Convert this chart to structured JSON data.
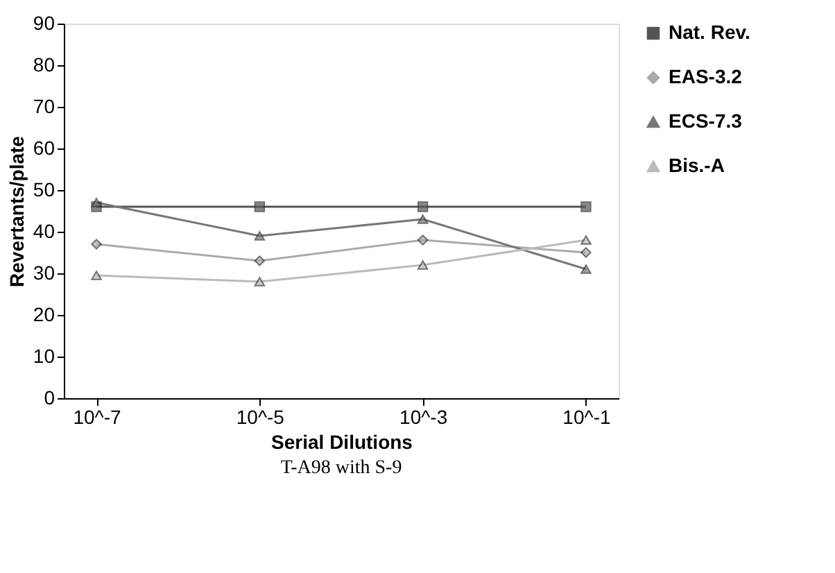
{
  "chart_data": {
    "type": "line",
    "xlabel": "Serial Dilutions",
    "ylabel": "Revertants/plate",
    "annotations": [
      "T-A98 with S-9"
    ],
    "categories": [
      "10^-7",
      "10^-5",
      "10^-3",
      "10^-1"
    ],
    "series": [
      {
        "name": "Nat. Rev.",
        "color": "#555555",
        "marker": "square",
        "values": [
          46,
          46,
          46,
          46
        ]
      },
      {
        "name": "EAS-3.2",
        "color": "#aaaaaa",
        "marker": "diamond",
        "values": [
          37,
          33,
          38,
          35
        ]
      },
      {
        "name": "ECS-7.3",
        "color": "#777777",
        "marker": "triangle",
        "values": [
          47,
          39,
          43,
          31
        ]
      },
      {
        "name": "Bis.-A",
        "color": "#bbbbbb",
        "marker": "triangle",
        "values": [
          29.5,
          28,
          32,
          38
        ]
      }
    ],
    "ylim": [
      0,
      90
    ],
    "yticks": [
      0,
      10,
      20,
      30,
      40,
      50,
      60,
      70,
      80,
      90
    ],
    "grid": false,
    "legend": "right",
    "line_style": "solid"
  }
}
